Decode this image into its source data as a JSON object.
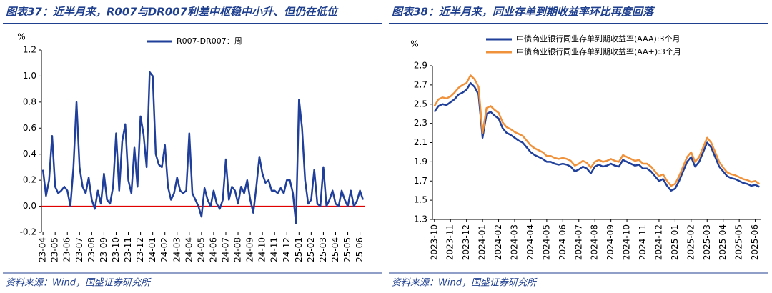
{
  "chart_data": [
    {
      "type": "line",
      "title": "图表37：近半月来，R007与DR007利差中枢稳中小升、但仍在低位",
      "y_label": "%",
      "source": "资料来源：Wind，国盛证券研究所",
      "categories": [
        "23-04",
        null,
        null,
        null,
        "23-05",
        null,
        null,
        null,
        "23-06",
        null,
        null,
        null,
        "23-07",
        null,
        null,
        null,
        "23-08",
        null,
        null,
        null,
        "23-09",
        null,
        null,
        null,
        "23-10",
        null,
        null,
        null,
        "23-11",
        null,
        null,
        null,
        "23-12",
        null,
        null,
        null,
        "24-01",
        null,
        null,
        null,
        "24-02",
        null,
        null,
        null,
        "24-03",
        null,
        null,
        null,
        "24-04",
        null,
        null,
        null,
        "24-05",
        null,
        null,
        null,
        "24-06",
        null,
        null,
        null,
        "24-07",
        null,
        null,
        null,
        "24-08",
        null,
        null,
        null,
        "24-09",
        null,
        null,
        null,
        "24-10",
        null,
        null,
        null,
        "24-11",
        null,
        null,
        null,
        "24-12",
        null,
        null,
        null,
        "25-01",
        null,
        null,
        null,
        "25-02",
        null,
        null,
        null,
        "25-03",
        null,
        null,
        null,
        "25-04",
        null,
        null,
        null,
        "25-05",
        null,
        null,
        null,
        "25-06",
        null
      ],
      "series": [
        {
          "name": "R007-DR007：周",
          "color": "#1f3f9a",
          "values": [
            0.28,
            0.08,
            0.2,
            0.54,
            0.15,
            0.1,
            0.12,
            0.15,
            0.12,
            0.0,
            0.3,
            0.8,
            0.3,
            0.15,
            0.1,
            0.22,
            0.05,
            -0.02,
            0.12,
            0.02,
            0.25,
            0.05,
            0.02,
            0.15,
            0.56,
            0.12,
            0.5,
            0.63,
            0.2,
            0.1,
            0.45,
            0.15,
            0.69,
            0.55,
            0.3,
            1.03,
            1.0,
            0.4,
            0.32,
            0.3,
            0.47,
            0.15,
            0.05,
            0.1,
            0.22,
            0.12,
            0.1,
            0.12,
            0.56,
            0.1,
            0.05,
            0.0,
            -0.08,
            0.14,
            0.05,
            0.0,
            0.12,
            0.02,
            -0.02,
            0.05,
            0.36,
            0.05,
            0.15,
            0.12,
            0.02,
            0.15,
            0.1,
            0.2,
            0.05,
            -0.05,
            0.15,
            0.38,
            0.25,
            0.18,
            0.2,
            0.12,
            0.12,
            0.1,
            0.14,
            0.1,
            0.2,
            0.2,
            0.1,
            -0.13,
            0.82,
            0.6,
            0.2,
            0.02,
            0.05,
            0.28,
            0.02,
            0.0,
            0.3,
            0.0,
            0.05,
            0.12,
            0.02,
            0.0,
            0.12,
            0.05,
            0.0,
            0.12,
            0.0,
            0.04,
            0.12,
            0.05
          ]
        }
      ],
      "ylim": [
        -0.2,
        1.2
      ],
      "yticks": [
        -0.2,
        {
          "value": 0,
          "label": "0.0"
        },
        0.2,
        0.4,
        0.6,
        0.8,
        {
          "value": 1,
          "label": "1.0"
        },
        1.2
      ],
      "baseline_color": "#e00000",
      "legend": "top"
    },
    {
      "type": "line",
      "title": "图表38：近半月来，同业存单到期收益率环比再度回落",
      "y_label": "%",
      "source": "资料来源：Wind，国盛证券研究所",
      "categories": [
        "2023-10",
        null,
        null,
        null,
        "2023-11",
        null,
        null,
        null,
        "2023-12",
        null,
        null,
        null,
        "2024-01",
        null,
        null,
        null,
        "2024-02",
        null,
        null,
        null,
        "2024-03",
        null,
        null,
        null,
        "2024-04",
        null,
        null,
        null,
        "2024-05",
        null,
        null,
        null,
        "2024-06",
        null,
        null,
        null,
        "2024-07",
        null,
        null,
        null,
        "2024-08",
        null,
        null,
        null,
        "2024-09",
        null,
        null,
        null,
        "2024-10",
        null,
        null,
        null,
        "2024-11",
        null,
        null,
        null,
        "2024-12",
        null,
        null,
        null,
        "2025-01",
        null,
        null,
        null,
        "2025-02",
        null,
        null,
        null,
        "2025-03",
        null,
        null,
        null,
        "2025-04",
        null,
        null,
        null,
        "2025-05",
        null,
        null,
        null,
        "2025-06",
        null
      ],
      "series": [
        {
          "name": "中债商业银行同业存单到期收益率(AAA):3个月",
          "color": "#1f3f9a",
          "values": [
            2.42,
            2.48,
            2.5,
            2.49,
            2.52,
            2.55,
            2.6,
            2.62,
            2.65,
            2.72,
            2.68,
            2.6,
            2.15,
            2.4,
            2.42,
            2.38,
            2.35,
            2.25,
            2.2,
            2.18,
            2.15,
            2.12,
            2.1,
            2.05,
            2.0,
            1.97,
            1.95,
            1.93,
            1.9,
            1.9,
            1.88,
            1.87,
            1.88,
            1.87,
            1.85,
            1.8,
            1.82,
            1.85,
            1.83,
            1.78,
            1.85,
            1.87,
            1.85,
            1.86,
            1.88,
            1.86,
            1.85,
            1.92,
            1.9,
            1.88,
            1.86,
            1.87,
            1.83,
            1.83,
            1.8,
            1.75,
            1.7,
            1.72,
            1.65,
            1.6,
            1.62,
            1.7,
            1.8,
            1.9,
            1.95,
            1.85,
            1.9,
            2.0,
            2.1,
            2.05,
            1.95,
            1.85,
            1.8,
            1.75,
            1.73,
            1.72,
            1.7,
            1.68,
            1.67,
            1.65,
            1.66,
            1.64
          ]
        },
        {
          "name": "中债商业银行同业存单到期收益率(AA+):3个月",
          "color": "#f0923c",
          "values": [
            2.48,
            2.55,
            2.57,
            2.56,
            2.58,
            2.62,
            2.67,
            2.7,
            2.72,
            2.8,
            2.76,
            2.68,
            2.2,
            2.46,
            2.48,
            2.44,
            2.41,
            2.31,
            2.26,
            2.24,
            2.21,
            2.19,
            2.17,
            2.12,
            2.07,
            2.04,
            2.02,
            2.0,
            1.96,
            1.96,
            1.94,
            1.93,
            1.94,
            1.93,
            1.91,
            1.86,
            1.88,
            1.91,
            1.89,
            1.84,
            1.9,
            1.92,
            1.9,
            1.91,
            1.93,
            1.91,
            1.9,
            1.97,
            1.95,
            1.93,
            1.91,
            1.92,
            1.88,
            1.88,
            1.85,
            1.8,
            1.75,
            1.77,
            1.7,
            1.65,
            1.67,
            1.75,
            1.85,
            1.95,
            2.0,
            1.9,
            1.95,
            2.05,
            2.15,
            2.1,
            2.0,
            1.9,
            1.84,
            1.79,
            1.77,
            1.76,
            1.74,
            1.72,
            1.71,
            1.69,
            1.7,
            1.67
          ]
        }
      ],
      "ylim": [
        1.3,
        2.9
      ],
      "yticks": [
        1.3,
        1.5,
        1.7,
        1.9,
        2.1,
        2.3,
        2.5,
        2.7,
        2.9
      ],
      "legend": "top"
    }
  ]
}
